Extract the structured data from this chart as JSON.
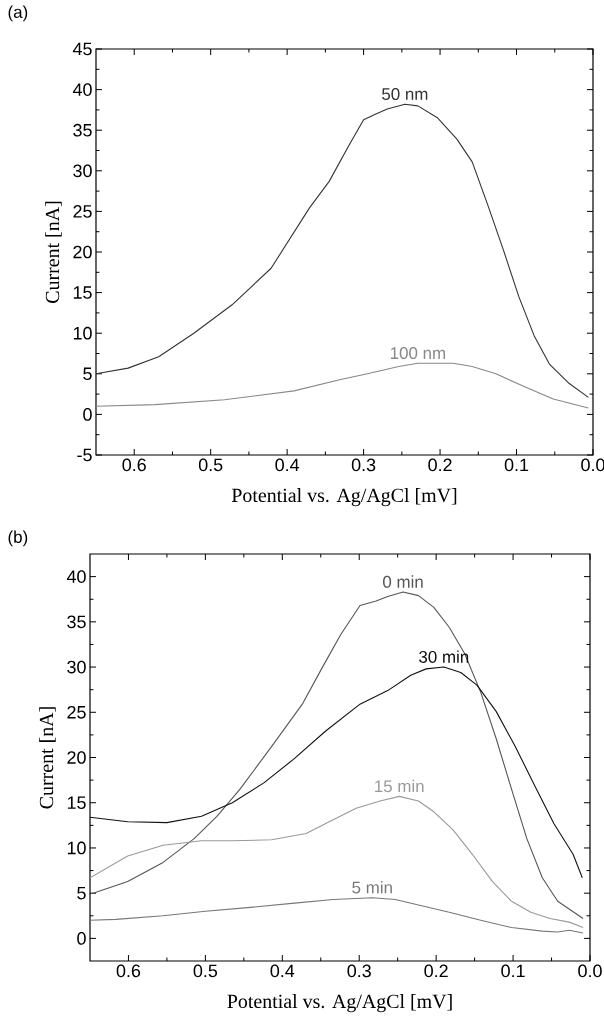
{
  "chart_data": [
    {
      "type": "line",
      "title": "(a)",
      "xlabel": "Potential vs. Ag/AgCl [mV]",
      "ylabel": "Current [nA]",
      "xlim": [
        0.65,
        0.0
      ],
      "ylim": [
        -5,
        45
      ],
      "xticks": [
        0.6,
        0.5,
        0.4,
        0.3,
        0.2,
        0.1,
        {
          "value": 0,
          "label": "0.0"
        }
      ],
      "yticks": [
        -5,
        0,
        5,
        10,
        15,
        20,
        25,
        30,
        35,
        40,
        45
      ],
      "series": [
        {
          "name": "50 nm",
          "color": "#333333",
          "x": [
            0.65,
            0.608,
            0.568,
            0.522,
            0.472,
            0.421,
            0.371,
            0.345,
            0.32,
            0.3,
            0.284,
            0.269,
            0.246,
            0.229,
            0.203,
            0.178,
            0.158,
            0.138,
            0.117,
            0.097,
            0.077,
            0.057,
            0.031,
            0.006
          ],
          "values": [
            5.0,
            5.7,
            7.1,
            10.0,
            13.5,
            18.0,
            25.4,
            28.7,
            33.0,
            36.3,
            37.0,
            37.6,
            38.2,
            38.0,
            36.5,
            33.9,
            31.1,
            25.9,
            20.2,
            14.5,
            9.7,
            6.2,
            3.8,
            2.1
          ]
        },
        {
          "name": "100 nm",
          "color": "#888888",
          "x": [
            0.65,
            0.573,
            0.482,
            0.391,
            0.33,
            0.295,
            0.254,
            0.229,
            0.183,
            0.158,
            0.127,
            0.087,
            0.052,
            0.006
          ],
          "values": [
            1.0,
            1.2,
            1.8,
            2.9,
            4.3,
            5.0,
            5.9,
            6.3,
            6.3,
            5.9,
            5.0,
            3.3,
            1.9,
            0.8
          ]
        }
      ]
    },
    {
      "type": "line",
      "title": "(b)",
      "xlabel": "Potential vs. Ag/AgCl [mV]",
      "ylabel": "Current [nA]",
      "xlim": [
        0.65,
        0.0
      ],
      "ylim": [
        -2.5,
        42.5
      ],
      "xticks": [
        0.6,
        0.5,
        0.4,
        0.3,
        0.2,
        0.1,
        {
          "value": 0,
          "label": "0.0"
        }
      ],
      "yticks": [
        0,
        5,
        10,
        15,
        20,
        25,
        30,
        35,
        40
      ],
      "series": [
        {
          "name": "0 min",
          "color": "#555555",
          "x": [
            0.646,
            0.601,
            0.555,
            0.515,
            0.485,
            0.455,
            0.414,
            0.374,
            0.349,
            0.324,
            0.299,
            0.278,
            0.263,
            0.243,
            0.223,
            0.203,
            0.183,
            0.163,
            0.142,
            0.122,
            0.102,
            0.082,
            0.062,
            0.042,
            0.009
          ],
          "values": [
            5.0,
            6.3,
            8.4,
            11.0,
            13.5,
            16.5,
            21.2,
            25.9,
            29.8,
            33.6,
            36.8,
            37.3,
            37.8,
            38.3,
            37.9,
            36.6,
            34.4,
            31.5,
            27.2,
            22.1,
            16.5,
            11.0,
            6.7,
            4.1,
            2.2
          ]
        },
        {
          "name": "30 min",
          "color": "#111111",
          "x": [
            0.65,
            0.601,
            0.55,
            0.505,
            0.465,
            0.424,
            0.384,
            0.344,
            0.299,
            0.263,
            0.233,
            0.213,
            0.19,
            0.168,
            0.147,
            0.122,
            0.097,
            0.072,
            0.047,
            0.022,
            0.01
          ],
          "values": [
            13.4,
            12.9,
            12.8,
            13.5,
            15.0,
            17.2,
            19.9,
            22.9,
            25.9,
            27.4,
            29.1,
            29.8,
            30.0,
            29.4,
            28.0,
            25.1,
            21.2,
            16.9,
            12.7,
            9.3,
            6.7
          ]
        },
        {
          "name": "15 min",
          "color": "#999999",
          "x": [
            0.65,
            0.601,
            0.555,
            0.505,
            0.465,
            0.414,
            0.369,
            0.339,
            0.304,
            0.273,
            0.248,
            0.223,
            0.203,
            0.178,
            0.153,
            0.127,
            0.102,
            0.077,
            0.052,
            0.027,
            0.009
          ],
          "values": [
            6.7,
            9.1,
            10.3,
            10.8,
            10.8,
            10.9,
            11.6,
            12.9,
            14.4,
            15.2,
            15.7,
            15.2,
            14.0,
            12.0,
            9.3,
            6.3,
            4.1,
            2.9,
            2.2,
            1.8,
            1.2
          ]
        },
        {
          "name": "5 min",
          "color": "#777777",
          "x": [
            0.65,
            0.616,
            0.555,
            0.5,
            0.445,
            0.384,
            0.334,
            0.283,
            0.253,
            0.223,
            0.183,
            0.142,
            0.102,
            0.062,
            0.042,
            0.027,
            0.009
          ],
          "values": [
            2.0,
            2.1,
            2.5,
            3.0,
            3.4,
            3.9,
            4.3,
            4.5,
            4.3,
            3.7,
            2.9,
            2.0,
            1.2,
            0.8,
            0.7,
            0.9,
            0.6
          ]
        }
      ]
    }
  ]
}
